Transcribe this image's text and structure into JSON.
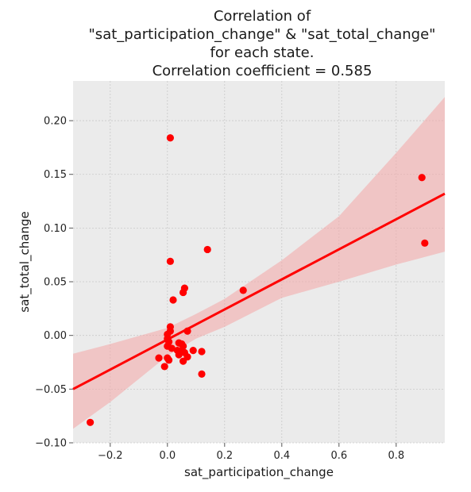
{
  "chart_data": {
    "type": "scatter",
    "title_lines": [
      "Correlation of",
      "\"sat_participation_change\" & \"sat_total_change\"",
      "for each state.",
      "Correlation coefficient = 0.585"
    ],
    "xlabel": "sat_participation_change",
    "ylabel": "sat_total_change",
    "xlim": [
      -0.33,
      0.97
    ],
    "ylim": [
      -0.1,
      0.237
    ],
    "xticks": [
      -0.2,
      0.0,
      0.2,
      0.4,
      0.6,
      0.8
    ],
    "xtick_labels": [
      "−0.2",
      "0.0",
      "0.2",
      "0.4",
      "0.6",
      "0.8"
    ],
    "yticks": [
      -0.1,
      -0.05,
      0.0,
      0.05,
      0.1,
      0.15,
      0.2
    ],
    "ytick_labels": [
      "−0.10",
      "−0.05",
      "0.00",
      "0.05",
      "0.10",
      "0.15",
      "0.20"
    ],
    "grid": true,
    "background": "#ebebeb",
    "point_color": "#ff0000",
    "line_color": "#ff0000",
    "band_color": "#f4a6a6",
    "points": [
      {
        "x": 0.01,
        "y": 0.184
      },
      {
        "x": 0.89,
        "y": 0.147
      },
      {
        "x": 0.9,
        "y": 0.086
      },
      {
        "x": 0.14,
        "y": 0.08
      },
      {
        "x": 0.01,
        "y": 0.069
      },
      {
        "x": 0.06,
        "y": 0.044
      },
      {
        "x": 0.055,
        "y": 0.04
      },
      {
        "x": 0.265,
        "y": 0.042
      },
      {
        "x": 0.02,
        "y": 0.033
      },
      {
        "x": 0.01,
        "y": 0.008
      },
      {
        "x": 0.01,
        "y": 0.004
      },
      {
        "x": 0.0,
        "y": 0.001
      },
      {
        "x": 0.07,
        "y": 0.004
      },
      {
        "x": 0.0,
        "y": -0.003
      },
      {
        "x": 0.005,
        "y": -0.006
      },
      {
        "x": 0.04,
        "y": -0.007
      },
      {
        "x": 0.05,
        "y": -0.008
      },
      {
        "x": 0.055,
        "y": -0.01
      },
      {
        "x": 0.0,
        "y": -0.01
      },
      {
        "x": 0.015,
        "y": -0.012
      },
      {
        "x": 0.035,
        "y": -0.014
      },
      {
        "x": 0.045,
        "y": -0.015
      },
      {
        "x": 0.09,
        "y": -0.014
      },
      {
        "x": 0.12,
        "y": -0.015
      },
      {
        "x": 0.06,
        "y": -0.016
      },
      {
        "x": 0.04,
        "y": -0.018
      },
      {
        "x": 0.07,
        "y": -0.02
      },
      {
        "x": -0.03,
        "y": -0.021
      },
      {
        "x": 0.0,
        "y": -0.021
      },
      {
        "x": 0.005,
        "y": -0.023
      },
      {
        "x": 0.055,
        "y": -0.024
      },
      {
        "x": -0.01,
        "y": -0.029
      },
      {
        "x": 0.12,
        "y": -0.036
      },
      {
        "x": -0.27,
        "y": -0.081
      }
    ],
    "regression": {
      "x": [
        -0.33,
        0.97
      ],
      "y": [
        -0.05,
        0.132
      ]
    },
    "confidence_band": {
      "x": [
        -0.33,
        -0.2,
        0.0,
        0.1,
        0.2,
        0.4,
        0.6,
        0.8,
        0.97
      ],
      "upper": [
        -0.017,
        -0.008,
        0.007,
        0.02,
        0.034,
        0.07,
        0.111,
        0.17,
        0.222
      ],
      "lower": [
        -0.087,
        -0.062,
        -0.019,
        -0.003,
        0.008,
        0.035,
        0.05,
        0.066,
        0.078
      ]
    }
  }
}
